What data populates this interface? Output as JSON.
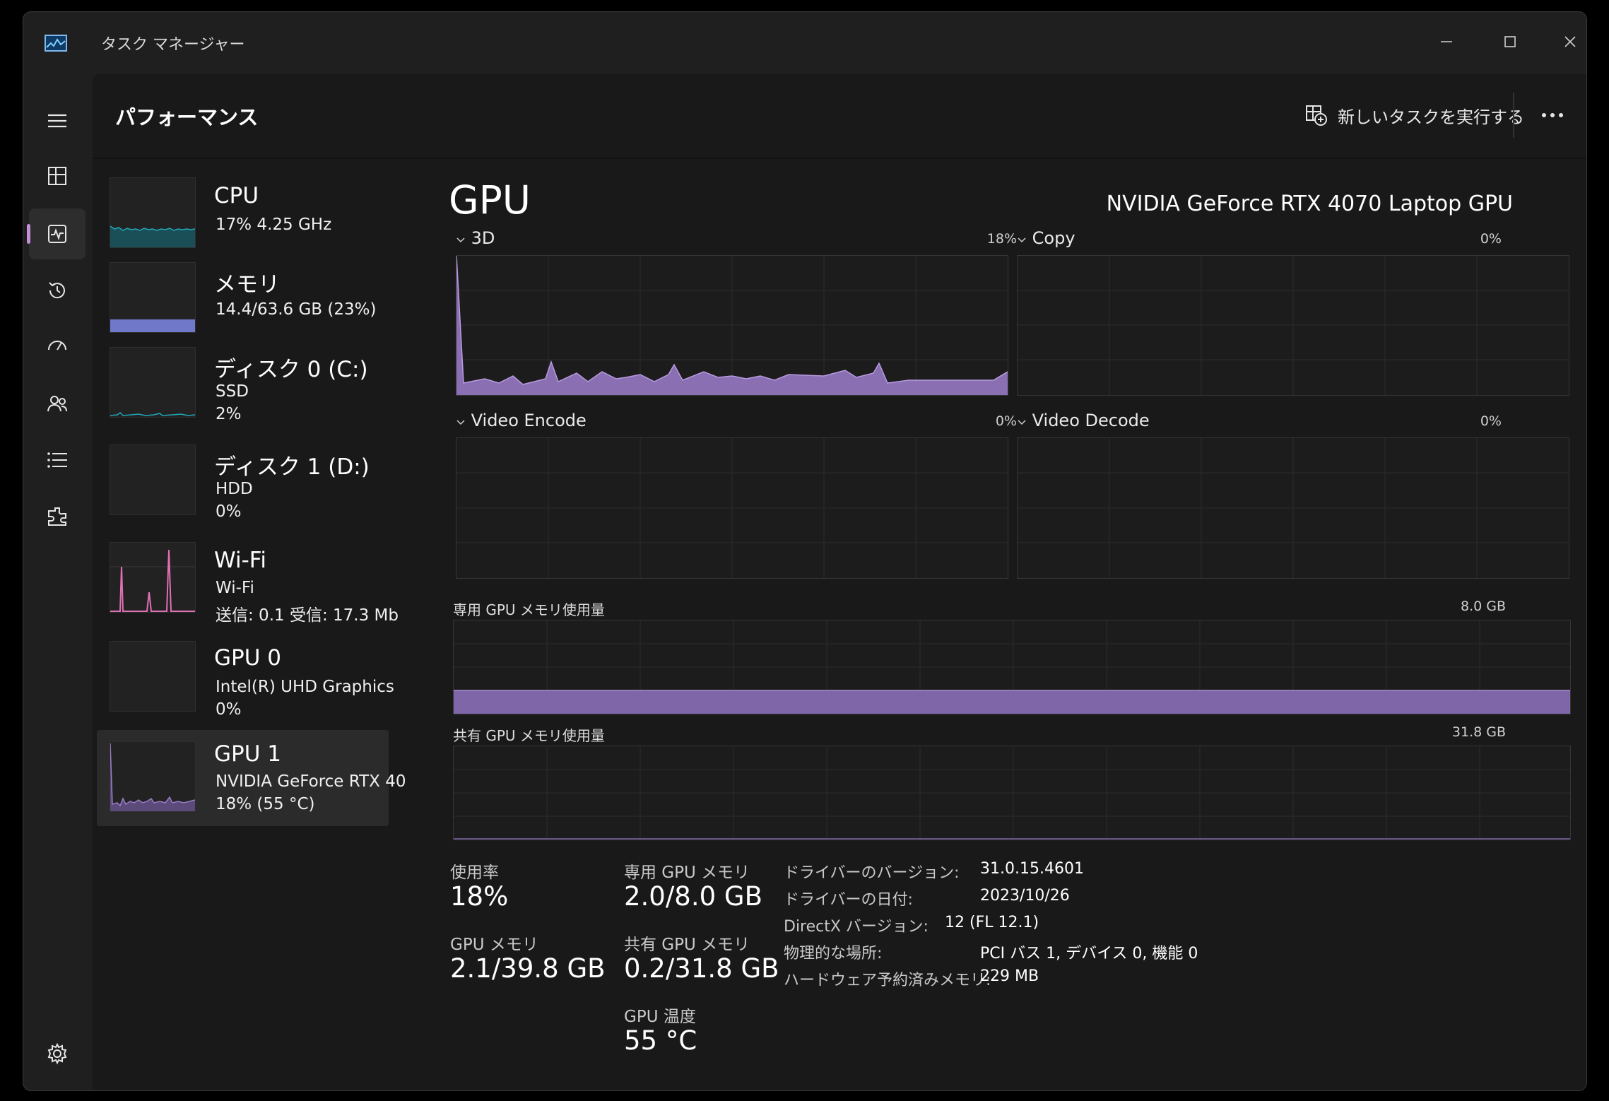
{
  "window": {
    "title": "タスク マネージャー"
  },
  "header": {
    "title": "パフォーマンス",
    "new_task_label": "新しいタスクを実行する"
  },
  "nav": {
    "items": [
      {
        "name": "menu",
        "icon": "hamburger-icon"
      },
      {
        "name": "processes",
        "icon": "processes-icon"
      },
      {
        "name": "performance",
        "icon": "performance-icon",
        "active": true
      },
      {
        "name": "app-history",
        "icon": "history-icon"
      },
      {
        "name": "startup-apps",
        "icon": "startup-icon"
      },
      {
        "name": "users",
        "icon": "users-icon"
      },
      {
        "name": "details",
        "icon": "details-icon"
      },
      {
        "name": "services",
        "icon": "services-icon"
      },
      {
        "name": "settings",
        "icon": "gear-icon"
      }
    ]
  },
  "devices": [
    {
      "name": "CPU",
      "line1": "17%  4.25 GHz",
      "line2": "",
      "color": "#1fa8b8"
    },
    {
      "name": "メモリ",
      "line1": "14.4/63.6 GB (23%)",
      "line2": "",
      "color": "#6f78c9"
    },
    {
      "name": "ディスク 0 (C:)",
      "line1": "SSD",
      "line2": "2%",
      "color": "#1fa8b8"
    },
    {
      "name": "ディスク 1 (D:)",
      "line1": "HDD",
      "line2": "0%",
      "color": "#1fa8b8"
    },
    {
      "name": "Wi-Fi",
      "line1": "Wi-Fi",
      "line2": "送信: 0.1  受信: 17.3 Mb",
      "color": "#e070b4"
    },
    {
      "name": "GPU 0",
      "line1": "Intel(R) UHD Graphics",
      "line2": "0%",
      "color": "#9a7dc6"
    },
    {
      "name": "GPU 1",
      "line1": "NVIDIA GeForce RTX 40",
      "line2": "18%  (55 °C)",
      "color": "#9a7dc6",
      "active": true
    }
  ],
  "gpu": {
    "title": "GPU",
    "model": "NVIDIA GeForce RTX 4070 Laptop GPU",
    "engines": [
      {
        "label": "3D",
        "value": "18%"
      },
      {
        "label": "Copy",
        "value": "0%"
      },
      {
        "label": "Video Encode",
        "value": "0%"
      },
      {
        "label": "Video Decode",
        "value": "0%"
      }
    ],
    "dedicated_memory": {
      "label": "専用 GPU メモリ使用量",
      "max": "8.0 GB"
    },
    "shared_memory": {
      "label": "共有 GPU メモリ使用量",
      "max": "31.8 GB"
    },
    "graph_color": "#9a7dc6"
  },
  "stats": {
    "utilization": {
      "label": "使用率",
      "value": "18%"
    },
    "dedicated": {
      "label": "専用 GPU メモリ",
      "value": "2.0/8.0 GB"
    },
    "gpu_memory": {
      "label": "GPU メモリ",
      "value": "2.1/39.8 GB"
    },
    "shared": {
      "label": "共有 GPU メモリ",
      "value": "0.2/31.8 GB"
    },
    "temperature": {
      "label": "GPU 温度",
      "value": "55 °C"
    }
  },
  "info": [
    {
      "label": "ドライバーのバージョン:",
      "value": "31.0.15.4601"
    },
    {
      "label": "ドライバーの日付:",
      "value": "2023/10/26"
    },
    {
      "label": "DirectX バージョン:",
      "value": "12 (FL 12.1)"
    },
    {
      "label": "物理的な場所:",
      "value": "PCI バス 1, デバイス 0, 機能 0"
    },
    {
      "label": "ハードウェア予約済みメモリ:",
      "value": "229 MB"
    }
  ]
}
